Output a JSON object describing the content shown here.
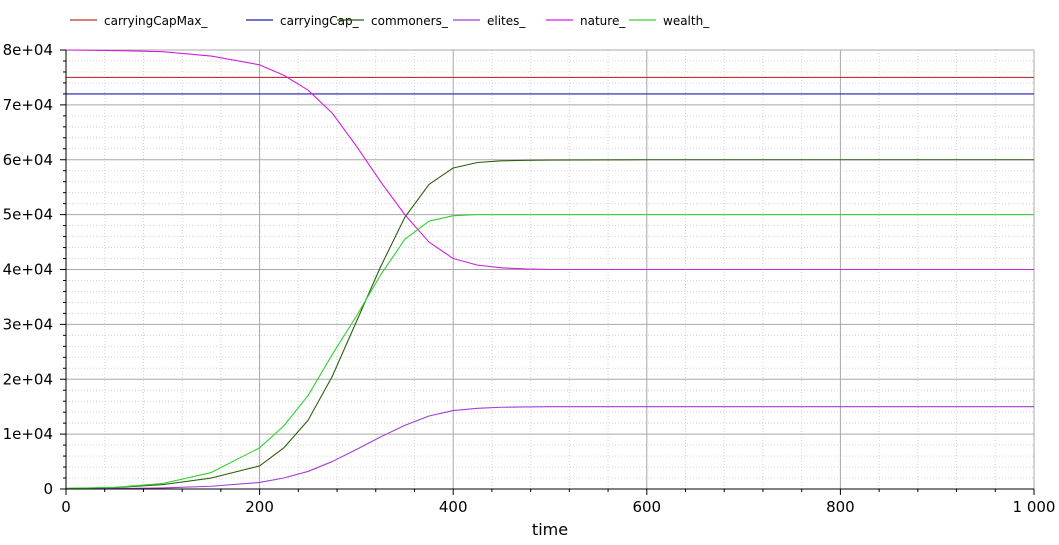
{
  "chart_data": {
    "type": "line",
    "xlabel": "time",
    "ylabel": "",
    "xlim": [
      0,
      1000
    ],
    "ylim": [
      0,
      80000
    ],
    "x_ticks": [
      0,
      200,
      400,
      600,
      800,
      1000
    ],
    "x_tick_labels": [
      "0",
      "200",
      "400",
      "600",
      "800",
      "1 000"
    ],
    "y_ticks": [
      0,
      10000,
      20000,
      30000,
      40000,
      50000,
      60000,
      70000,
      80000
    ],
    "y_tick_labels": [
      "0",
      "1e+04",
      "2e+04",
      "3e+04",
      "4e+04",
      "5e+04",
      "6e+04",
      "7e+04",
      "8e+04"
    ],
    "grid": true,
    "legend_position": "top",
    "series": [
      {
        "name": "carryingCapMax_",
        "color": "#c03030",
        "x": [
          0,
          1000
        ],
        "values": [
          75000,
          75000
        ]
      },
      {
        "name": "carryingCap_",
        "color": "#1f1fb0",
        "x": [
          0,
          1000
        ],
        "values": [
          72000,
          72000
        ]
      },
      {
        "name": "commoners_",
        "color": "#2e5e10",
        "x": [
          0,
          50,
          100,
          150,
          200,
          225,
          250,
          275,
          300,
          325,
          350,
          375,
          400,
          425,
          450,
          475,
          500,
          600,
          800,
          1000
        ],
        "values": [
          100,
          250,
          800,
          2000,
          4200,
          7500,
          12500,
          20500,
          30500,
          40500,
          49500,
          55500,
          58500,
          59500,
          59800,
          59900,
          59950,
          60000,
          60000,
          60000
        ]
      },
      {
        "name": "elites_",
        "color": "#a040d0",
        "x": [
          0,
          50,
          100,
          150,
          200,
          225,
          250,
          275,
          300,
          325,
          350,
          375,
          400,
          425,
          450,
          475,
          500,
          600,
          800,
          1000
        ],
        "values": [
          0,
          80,
          200,
          500,
          1200,
          2000,
          3200,
          5000,
          7200,
          9500,
          11600,
          13300,
          14300,
          14700,
          14900,
          14950,
          15000,
          15000,
          15000,
          15000
        ]
      },
      {
        "name": "nature_",
        "color": "#d020d8",
        "x": [
          0,
          50,
          100,
          150,
          200,
          225,
          250,
          275,
          300,
          325,
          350,
          375,
          400,
          425,
          450,
          475,
          500,
          600,
          800,
          1000
        ],
        "values": [
          80000,
          79900,
          79700,
          78900,
          77300,
          75400,
          72700,
          68500,
          62500,
          56000,
          50000,
          45000,
          42000,
          40800,
          40300,
          40100,
          40000,
          40000,
          40000,
          40000
        ]
      },
      {
        "name": "wealth_",
        "color": "#30d030",
        "x": [
          0,
          50,
          100,
          150,
          200,
          225,
          250,
          275,
          300,
          325,
          350,
          375,
          400,
          425,
          450,
          475,
          500,
          600,
          800,
          1000
        ],
        "values": [
          100,
          300,
          1000,
          3000,
          7500,
          11500,
          17000,
          24500,
          31500,
          39000,
          45500,
          48800,
          49800,
          50000,
          50000,
          50000,
          50000,
          50000,
          50000,
          50000
        ]
      }
    ]
  }
}
